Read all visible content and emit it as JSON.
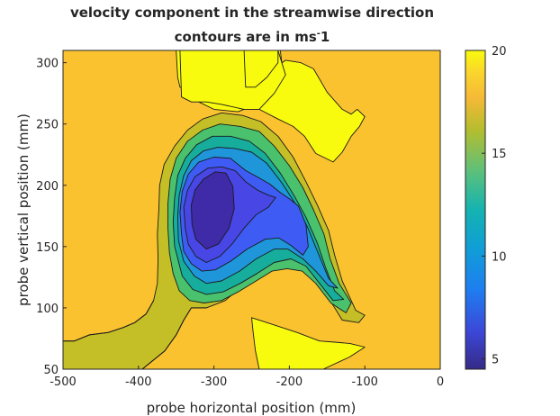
{
  "chart_data": {
    "type": "contour",
    "title": "velocity component in the streamwise direction",
    "subtitle": "contours are in ms",
    "subtitle_sup": "-",
    "subtitle_tail": "1",
    "xlabel": "probe horizontal position (mm)",
    "ylabel": "probe vertical position (mm)",
    "xlim": [
      -500,
      0
    ],
    "ylim": [
      50,
      310
    ],
    "xticks": [
      "-500",
      "-400",
      "-300",
      "-200",
      "-100",
      "0"
    ],
    "yticks": [
      "50",
      "100",
      "150",
      "200",
      "250",
      "300"
    ],
    "colorbar": {
      "range": [
        4.5,
        20
      ],
      "ticks": [
        "5",
        "10",
        "15",
        "20"
      ],
      "colormap": "parula"
    },
    "background_level": 17.5,
    "regions": [
      {
        "level": 20,
        "color": "#f9fb0e",
        "points": [
          [
            -260,
            310
          ],
          [
            -255,
            285
          ],
          [
            -240,
            282
          ],
          [
            -225,
            293
          ],
          [
            -205,
            302
          ],
          [
            -185,
            300
          ],
          [
            -168,
            295
          ],
          [
            -150,
            276
          ],
          [
            -130,
            262
          ],
          [
            -118,
            258
          ],
          [
            -110,
            262
          ],
          [
            -100,
            256
          ],
          [
            -107,
            248
          ],
          [
            -118,
            240
          ],
          [
            -130,
            227
          ],
          [
            -142,
            219
          ],
          [
            -165,
            226
          ],
          [
            -180,
            240
          ],
          [
            -195,
            248
          ],
          [
            -215,
            254
          ],
          [
            -240,
            262
          ],
          [
            -260,
            270
          ],
          [
            -300,
            276
          ],
          [
            -345,
            280
          ],
          [
            -348,
            288
          ],
          [
            -350,
            310
          ]
        ]
      },
      {
        "level": 20,
        "color": "#f9fb0e",
        "points": [
          [
            -280,
            310
          ],
          [
            -290,
            300
          ],
          [
            -315,
            292
          ],
          [
            -325,
            280
          ],
          [
            -320,
            268
          ],
          [
            -300,
            262
          ],
          [
            -268,
            260
          ],
          [
            -248,
            265
          ],
          [
            -235,
            275
          ],
          [
            -220,
            285
          ],
          [
            -210,
            300
          ],
          [
            -212,
            310
          ]
        ]
      },
      {
        "level": 20,
        "color": "#f9fb0e",
        "points": [
          [
            -345,
            310
          ],
          [
            -343,
            272
          ],
          [
            -330,
            268
          ],
          [
            -310,
            268
          ],
          [
            -290,
            266
          ],
          [
            -260,
            262
          ],
          [
            -240,
            262
          ],
          [
            -220,
            275
          ],
          [
            -205,
            290
          ],
          [
            -215,
            310
          ]
        ]
      },
      {
        "level": 20,
        "color": "#f9fb0e",
        "points": [
          [
            -260,
            310
          ],
          [
            -258,
            280
          ],
          [
            -245,
            280
          ],
          [
            -230,
            288
          ],
          [
            -215,
            300
          ],
          [
            -215,
            310
          ]
        ]
      },
      {
        "level": 20,
        "color": "#f9fb0e",
        "points": [
          [
            -250,
            92
          ],
          [
            -225,
            87
          ],
          [
            -190,
            80
          ],
          [
            -160,
            73
          ],
          [
            -140,
            72
          ],
          [
            -120,
            71
          ],
          [
            -100,
            68
          ],
          [
            -120,
            60
          ],
          [
            -155,
            50
          ],
          [
            -240,
            50
          ],
          [
            -245,
            65
          ],
          [
            -248,
            80
          ]
        ]
      },
      {
        "level": 15.5,
        "color": "#c5bf27",
        "points": [
          [
            -500,
            50
          ],
          [
            -500,
            73
          ],
          [
            -485,
            73
          ],
          [
            -465,
            78
          ],
          [
            -440,
            80
          ],
          [
            -420,
            84
          ],
          [
            -405,
            88
          ],
          [
            -390,
            95
          ],
          [
            -380,
            106
          ],
          [
            -375,
            120
          ],
          [
            -374,
            140
          ],
          [
            -375,
            160
          ],
          [
            -373,
            180
          ],
          [
            -372,
            200
          ],
          [
            -366,
            217
          ],
          [
            -352,
            232
          ],
          [
            -335,
            245
          ],
          [
            -315,
            254
          ],
          [
            -290,
            259
          ],
          [
            -262,
            257
          ],
          [
            -238,
            252
          ],
          [
            -215,
            240
          ],
          [
            -195,
            223
          ],
          [
            -178,
            203
          ],
          [
            -163,
            184
          ],
          [
            -148,
            163
          ],
          [
            -140,
            143
          ],
          [
            -130,
            122
          ],
          [
            -112,
            98
          ],
          [
            -100,
            94
          ],
          [
            -108,
            88
          ],
          [
            -130,
            90
          ],
          [
            -150,
            110
          ],
          [
            -165,
            128
          ],
          [
            -180,
            140
          ],
          [
            -200,
            143
          ],
          [
            -220,
            142
          ],
          [
            -240,
            132
          ],
          [
            -262,
            118
          ],
          [
            -285,
            106
          ],
          [
            -310,
            100
          ],
          [
            -330,
            100
          ],
          [
            -340,
            90
          ],
          [
            -350,
            78
          ],
          [
            -365,
            65
          ],
          [
            -385,
            55
          ],
          [
            -395,
            50
          ]
        ]
      },
      {
        "level": 13,
        "color": "#4ac16d",
        "points": [
          [
            -359,
            145
          ],
          [
            -361,
            165
          ],
          [
            -361,
            185
          ],
          [
            -358,
            205
          ],
          [
            -350,
            222
          ],
          [
            -335,
            236
          ],
          [
            -315,
            245
          ],
          [
            -292,
            250
          ],
          [
            -265,
            248
          ],
          [
            -240,
            244
          ],
          [
            -220,
            232
          ],
          [
            -200,
            216
          ],
          [
            -182,
            198
          ],
          [
            -168,
            180
          ],
          [
            -154,
            160
          ],
          [
            -146,
            140
          ],
          [
            -134,
            120
          ],
          [
            -118,
            104
          ],
          [
            -125,
            96
          ],
          [
            -145,
            104
          ],
          [
            -165,
            120
          ],
          [
            -183,
            130
          ],
          [
            -203,
            132
          ],
          [
            -223,
            130
          ],
          [
            -244,
            122
          ],
          [
            -268,
            113
          ],
          [
            -290,
            106
          ],
          [
            -313,
            104
          ],
          [
            -332,
            106
          ],
          [
            -346,
            114
          ],
          [
            -354,
            128
          ]
        ]
      },
      {
        "level": 11.5,
        "color": "#17ad9c",
        "points": [
          [
            -352,
            150
          ],
          [
            -354,
            170
          ],
          [
            -352,
            190
          ],
          [
            -348,
            208
          ],
          [
            -338,
            222
          ],
          [
            -323,
            233
          ],
          [
            -302,
            240
          ],
          [
            -278,
            240
          ],
          [
            -253,
            236
          ],
          [
            -232,
            226
          ],
          [
            -212,
            210
          ],
          [
            -194,
            192
          ],
          [
            -178,
            174
          ],
          [
            -163,
            153
          ],
          [
            -152,
            133
          ],
          [
            -140,
            114
          ],
          [
            -128,
            107
          ],
          [
            -142,
            106
          ],
          [
            -160,
            120
          ],
          [
            -178,
            134
          ],
          [
            -198,
            140
          ],
          [
            -220,
            137
          ],
          [
            -243,
            128
          ],
          [
            -265,
            120
          ],
          [
            -288,
            113
          ],
          [
            -310,
            111
          ],
          [
            -328,
            115
          ],
          [
            -342,
            126
          ]
        ]
      },
      {
        "level": 10,
        "color": "#1e96d9",
        "points": [
          [
            -347,
            155
          ],
          [
            -348,
            175
          ],
          [
            -346,
            192
          ],
          [
            -340,
            208
          ],
          [
            -330,
            220
          ],
          [
            -314,
            228
          ],
          [
            -295,
            231
          ],
          [
            -272,
            230
          ],
          [
            -250,
            227
          ],
          [
            -230,
            218
          ],
          [
            -210,
            202
          ],
          [
            -192,
            185
          ],
          [
            -176,
            166
          ],
          [
            -162,
            145
          ],
          [
            -148,
            124
          ],
          [
            -136,
            116
          ],
          [
            -148,
            118
          ],
          [
            -165,
            130
          ],
          [
            -182,
            140
          ],
          [
            -202,
            148
          ],
          [
            -220,
            148
          ],
          [
            -244,
            140
          ],
          [
            -266,
            130
          ],
          [
            -290,
            122
          ],
          [
            -310,
            120
          ],
          [
            -326,
            126
          ],
          [
            -340,
            138
          ]
        ]
      },
      {
        "level": 7.5,
        "color": "#3e5cf3",
        "points": [
          [
            -343,
            160
          ],
          [
            -345,
            178
          ],
          [
            -342,
            195
          ],
          [
            -334,
            209
          ],
          [
            -320,
            219
          ],
          [
            -300,
            223
          ],
          [
            -278,
            222
          ],
          [
            -258,
            212
          ],
          [
            -240,
            206
          ],
          [
            -226,
            201
          ],
          [
            -212,
            194
          ],
          [
            -200,
            189
          ],
          [
            -188,
            183
          ],
          [
            -178,
            168
          ],
          [
            -175,
            150
          ],
          [
            -182,
            143
          ],
          [
            -198,
            151
          ],
          [
            -214,
            157
          ],
          [
            -232,
            156
          ],
          [
            -256,
            148
          ],
          [
            -278,
            138
          ],
          [
            -298,
            131
          ],
          [
            -316,
            130
          ],
          [
            -330,
            136
          ],
          [
            -340,
            146
          ]
        ]
      },
      {
        "level": 6.5,
        "color": "#4846e4",
        "points": [
          [
            -338,
            165
          ],
          [
            -340,
            182
          ],
          [
            -335,
            196
          ],
          [
            -325,
            207
          ],
          [
            -308,
            214
          ],
          [
            -290,
            215
          ],
          [
            -272,
            212
          ],
          [
            -258,
            203
          ],
          [
            -242,
            196
          ],
          [
            -228,
            192
          ],
          [
            -218,
            190
          ],
          [
            -228,
            182
          ],
          [
            -244,
            176
          ],
          [
            -260,
            165
          ],
          [
            -276,
            152
          ],
          [
            -292,
            142
          ],
          [
            -310,
            137
          ],
          [
            -324,
            142
          ],
          [
            -334,
            152
          ]
        ]
      },
      {
        "level": 5.5,
        "color": "#3f2aa8",
        "points": [
          [
            -329,
            168
          ],
          [
            -330,
            184
          ],
          [
            -325,
            196
          ],
          [
            -314,
            205
          ],
          [
            -298,
            211
          ],
          [
            -284,
            210
          ],
          [
            -275,
            199
          ],
          [
            -273,
            181
          ],
          [
            -280,
            165
          ],
          [
            -294,
            152
          ],
          [
            -310,
            148
          ],
          [
            -324,
            156
          ]
        ]
      }
    ],
    "contour_lines": [
      {
        "level": 20,
        "points": [
          [
            -500,
            73
          ],
          [
            -485,
            73
          ],
          [
            -465,
            78
          ],
          [
            -440,
            80
          ],
          [
            -420,
            84
          ],
          [
            -405,
            88
          ],
          [
            -390,
            95
          ],
          [
            -380,
            106
          ]
        ]
      },
      {
        "level": 20,
        "points": [
          [
            -395,
            50
          ],
          [
            -385,
            55
          ],
          [
            -365,
            65
          ],
          [
            -350,
            78
          ],
          [
            -340,
            90
          ],
          [
            -330,
            100
          ],
          [
            -310,
            100
          ]
        ]
      }
    ]
  }
}
